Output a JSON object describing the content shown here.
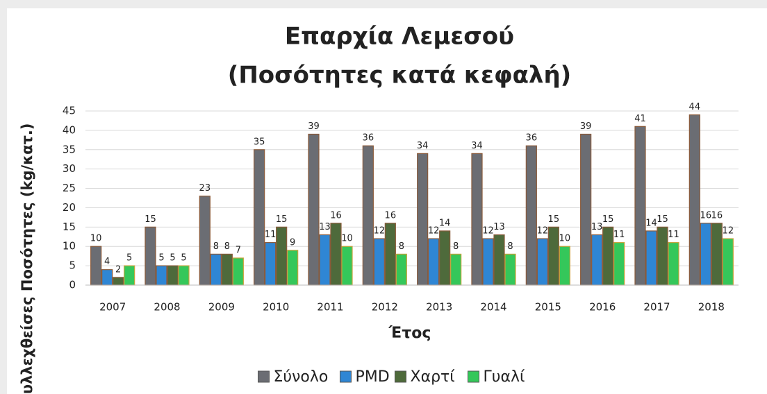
{
  "chart_data": {
    "type": "bar",
    "title": "Επαρχία Λεμεσού",
    "subtitle": "(Ποσότητες κατά κεφαλή)",
    "x_label": "Έτος",
    "y_label": "Συλλεχθείσες Ποσότητες (kg/κατ.)",
    "categories": [
      "2007",
      "2008",
      "2009",
      "2010",
      "2011",
      "2012",
      "2013",
      "2014",
      "2015",
      "2016",
      "2017",
      "2018"
    ],
    "series": [
      {
        "name": "Σύνολο",
        "color": "#6b6d73",
        "values": [
          10,
          15,
          23,
          35,
          39,
          36,
          34,
          34,
          36,
          39,
          41,
          44
        ]
      },
      {
        "name": "PMD",
        "color": "#2f86d4",
        "values": [
          4,
          5,
          8,
          11,
          13,
          12,
          12,
          12,
          12,
          13,
          14,
          16
        ]
      },
      {
        "name": "Χαρτί",
        "color": "#4e6a3b",
        "values": [
          2,
          5,
          8,
          15,
          16,
          16,
          14,
          13,
          15,
          15,
          15,
          16
        ]
      },
      {
        "name": "Γυαλί",
        "color": "#35c75a",
        "values": [
          5,
          5,
          7,
          9,
          10,
          8,
          8,
          8,
          10,
          11,
          11,
          12
        ]
      }
    ],
    "ylim": [
      0,
      45
    ],
    "yticks": [
      0,
      5,
      10,
      15,
      20,
      25,
      30,
      35,
      40,
      45
    ],
    "grid": true,
    "legend": "bottom"
  }
}
